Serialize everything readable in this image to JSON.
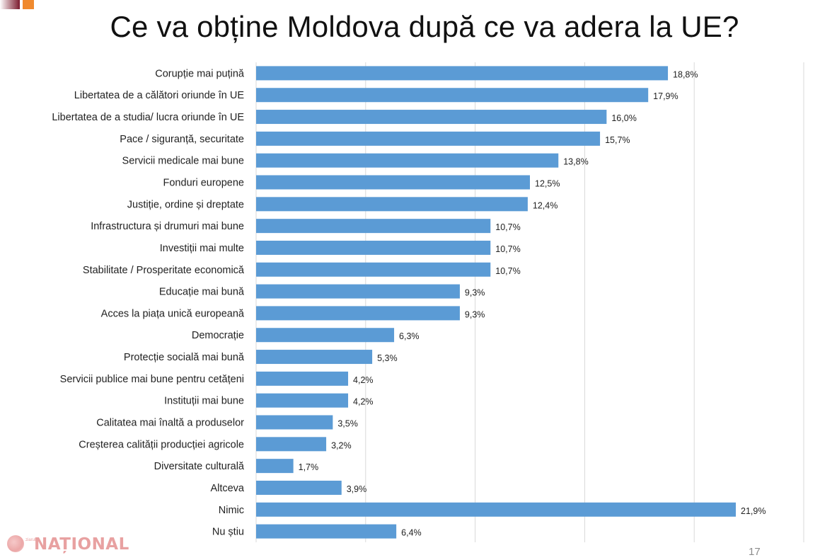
{
  "slide": {
    "title": "Ce va obține Moldova după ce va adera la UE?",
    "page_number": "17",
    "watermark": "NAȚIONAL",
    "watermark_small": "ziarul"
  },
  "colors": {
    "bar": "#5b9bd5",
    "grid": "#d9d9d9",
    "label": "#222222"
  },
  "chart_data": {
    "type": "bar",
    "orientation": "horizontal",
    "title": "",
    "xlabel": "",
    "ylabel": "",
    "xlim": [
      0,
      25
    ],
    "grid": true,
    "legend": "none",
    "categories": [
      "Corupție mai puțină",
      "Libertatea de a călători oriunde în UE",
      "Libertatea de a studia/ lucra oriunde în UE",
      "Pace / siguranță, securitate",
      "Servicii medicale mai bune",
      "Fonduri europene",
      "Justiție, ordine și dreptate",
      "Infrastructura și drumuri mai bune",
      "Investiții mai multe",
      "Stabilitate / Prosperitate economică",
      "Educație mai bună",
      "Acces la piața unică europeană",
      "Democrație",
      "Protecție socială mai bună",
      "Servicii publice mai bune pentru cetățeni",
      "Instituții mai bune",
      "Calitatea mai înaltă a produselor",
      "Creșterea calității producției agricole",
      "Diversitate culturală",
      "Altceva",
      "Nimic",
      "Nu știu"
    ],
    "values": [
      18.8,
      17.9,
      16.0,
      15.7,
      13.8,
      12.5,
      12.4,
      10.7,
      10.7,
      10.7,
      9.3,
      9.3,
      6.3,
      5.3,
      4.2,
      4.2,
      3.5,
      3.2,
      1.7,
      3.9,
      21.9,
      6.4
    ],
    "value_labels": [
      "18,8%",
      "17,9%",
      "16,0%",
      "15,7%",
      "13,8%",
      "12,5%",
      "12,4%",
      "10,7%",
      "10,7%",
      "10,7%",
      "9,3%",
      "9,3%",
      "6,3%",
      "5,3%",
      "4,2%",
      "4,2%",
      "3,5%",
      "3,2%",
      "1,7%",
      "3,9%",
      "21,9%",
      "6,4%"
    ]
  }
}
